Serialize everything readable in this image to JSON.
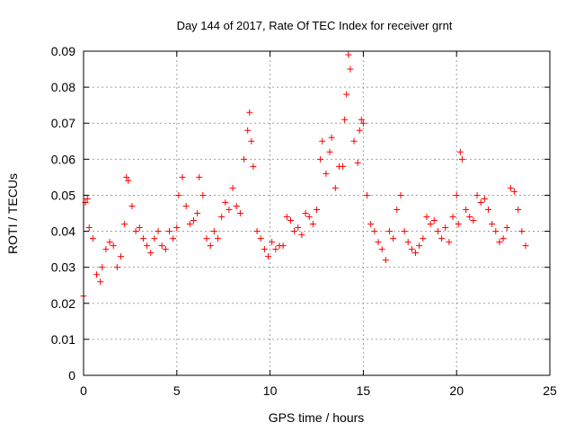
{
  "chart_data": {
    "type": "scatter",
    "title": "Day 144 of 2017, Rate Of TEC Index for receiver grnt",
    "xlabel": "GPS time / hours",
    "ylabel": "ROTI / TECUs",
    "xlim": [
      0,
      25
    ],
    "ylim": [
      0,
      0.09
    ],
    "x_ticks": [
      "0",
      "5",
      "10",
      "15",
      "20",
      "25"
    ],
    "y_ticks": [
      "0",
      "0.01",
      "0.02",
      "0.03",
      "0.04",
      "0.05",
      "0.06",
      "0.07",
      "0.08",
      "0.09"
    ],
    "grid": true,
    "marker": "+",
    "color": "#ff0000",
    "series": [
      {
        "x": [
          0.0,
          0.1,
          0.2,
          0.3,
          0.5,
          0.7,
          0.9,
          1.0,
          1.2,
          1.4,
          1.6,
          1.8,
          2.0,
          2.2,
          2.3,
          2.4,
          2.6,
          2.8,
          3.0,
          3.2,
          3.4,
          3.6,
          3.8,
          4.0,
          4.2,
          4.4,
          4.6,
          4.8,
          5.0,
          5.1,
          5.3,
          5.5,
          5.7,
          5.9,
          6.1,
          6.2,
          6.4,
          6.6,
          6.8,
          7.0,
          7.2,
          7.4,
          7.6,
          7.8,
          8.0,
          8.2,
          8.4,
          8.6,
          8.8,
          8.9,
          9.0,
          9.1,
          9.3,
          9.5,
          9.7,
          9.9,
          10.1,
          10.3,
          10.5,
          10.7,
          10.9,
          11.1,
          11.3,
          11.5,
          11.7,
          11.9,
          12.1,
          12.3,
          12.5,
          12.7,
          12.8,
          13.0,
          13.2,
          13.3,
          13.5,
          13.7,
          13.9,
          14.0,
          14.1,
          14.2,
          14.3,
          14.5,
          14.7,
          14.8,
          14.9,
          15.0,
          15.2,
          15.4,
          15.6,
          15.8,
          16.0,
          16.2,
          16.4,
          16.6,
          16.8,
          17.0,
          17.2,
          17.4,
          17.6,
          17.8,
          18.0,
          18.2,
          18.4,
          18.6,
          18.8,
          19.0,
          19.2,
          19.4,
          19.6,
          19.8,
          20.0,
          20.1,
          20.2,
          20.3,
          20.5,
          20.7,
          20.9,
          21.1,
          21.3,
          21.5,
          21.7,
          21.9,
          22.1,
          22.3,
          22.5,
          22.7,
          22.9,
          23.1,
          23.3,
          23.5,
          23.7
        ],
        "y": [
          0.022,
          0.048,
          0.049,
          0.041,
          0.038,
          0.028,
          0.026,
          0.03,
          0.035,
          0.037,
          0.036,
          0.03,
          0.033,
          0.042,
          0.055,
          0.054,
          0.047,
          0.04,
          0.041,
          0.038,
          0.036,
          0.034,
          0.038,
          0.04,
          0.036,
          0.035,
          0.04,
          0.038,
          0.041,
          0.05,
          0.055,
          0.047,
          0.042,
          0.043,
          0.045,
          0.055,
          0.05,
          0.038,
          0.036,
          0.04,
          0.038,
          0.044,
          0.048,
          0.046,
          0.052,
          0.047,
          0.045,
          0.06,
          0.068,
          0.073,
          0.065,
          0.058,
          0.04,
          0.038,
          0.035,
          0.033,
          0.037,
          0.035,
          0.036,
          0.036,
          0.044,
          0.043,
          0.04,
          0.041,
          0.039,
          0.045,
          0.044,
          0.042,
          0.046,
          0.06,
          0.065,
          0.056,
          0.062,
          0.066,
          0.052,
          0.058,
          0.058,
          0.071,
          0.078,
          0.089,
          0.085,
          0.065,
          0.059,
          0.068,
          0.071,
          0.07,
          0.05,
          0.042,
          0.04,
          0.037,
          0.035,
          0.032,
          0.04,
          0.038,
          0.046,
          0.05,
          0.04,
          0.037,
          0.035,
          0.034,
          0.036,
          0.038,
          0.044,
          0.042,
          0.043,
          0.04,
          0.038,
          0.041,
          0.037,
          0.044,
          0.05,
          0.042,
          0.062,
          0.06,
          0.046,
          0.044,
          0.043,
          0.05,
          0.048,
          0.049,
          0.046,
          0.042,
          0.04,
          0.037,
          0.038,
          0.041,
          0.052,
          0.051,
          0.046,
          0.04,
          0.036
        ]
      }
    ]
  }
}
